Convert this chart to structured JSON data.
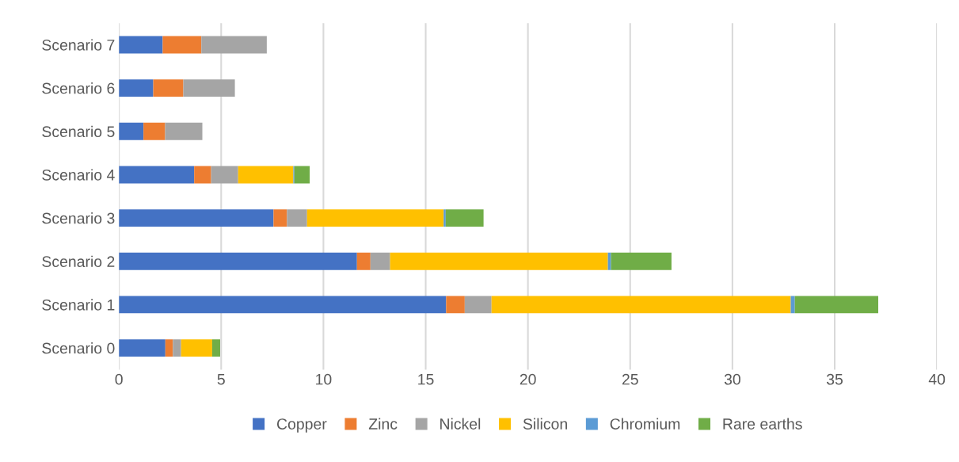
{
  "chart_data": {
    "type": "bar",
    "orientation": "horizontal",
    "stacked": true,
    "categories": [
      "Scenario 7",
      "Scenario 6",
      "Scenario 5",
      "Scenario 4",
      "Scenario 3",
      "Scenario 2",
      "Scenario 1",
      "Scenario 0"
    ],
    "series": [
      {
        "name": "Copper",
        "color": "#4472c4",
        "values": [
          2.14,
          1.68,
          1.2,
          3.68,
          7.56,
          11.64,
          16.0,
          2.27
        ]
      },
      {
        "name": "Zinc",
        "color": "#ed7d31",
        "values": [
          1.89,
          1.47,
          1.06,
          0.83,
          0.66,
          0.66,
          0.91,
          0.37
        ]
      },
      {
        "name": "Nickel",
        "color": "#a5a5a5",
        "values": [
          3.2,
          2.52,
          1.82,
          1.32,
          0.98,
          0.96,
          1.31,
          0.4
        ]
      },
      {
        "name": "Silicon",
        "color": "#ffc000",
        "values": [
          null,
          null,
          null,
          2.7,
          6.68,
          10.65,
          14.63,
          1.52
        ]
      },
      {
        "name": "Chromium",
        "color": "#5b9bd5",
        "values": [
          null,
          null,
          null,
          0.05,
          0.1,
          0.15,
          0.2,
          null
        ]
      },
      {
        "name": "Rare earths",
        "color": "#70ad47",
        "values": [
          null,
          null,
          null,
          0.75,
          1.85,
          2.96,
          4.08,
          0.39
        ]
      }
    ],
    "xlim": [
      0,
      40
    ],
    "xticks": [
      0,
      5,
      10,
      15,
      20,
      25,
      30,
      35,
      40
    ],
    "grid": "x",
    "legend": "bottom"
  }
}
